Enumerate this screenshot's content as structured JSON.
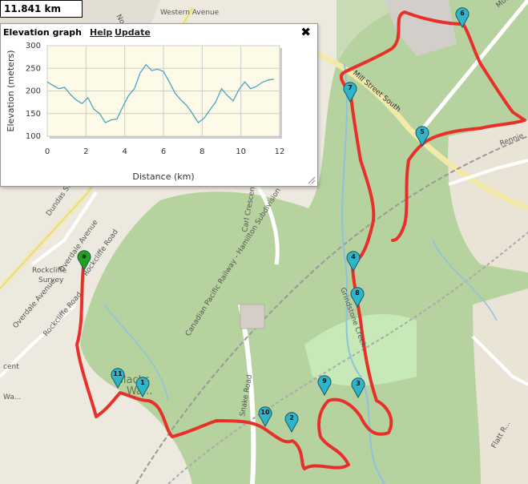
{
  "distance_readout": "11.841 km",
  "panel": {
    "title": "Elevation graph",
    "help_label": "Help",
    "update_label": "Update",
    "close_label": "✖"
  },
  "colors": {
    "route": "#e8302a",
    "marker_fill": "#2fb5c9",
    "start_marker": "#1fa31f",
    "profile_line": "#4aa3c4"
  },
  "map_labels": {
    "dundas": "Dundas Street",
    "overdale": "Overdale Avenue",
    "rockcliffe_road": "Rockcliffe Road",
    "rockcliffe_survey_1": "Rockcliffe",
    "rockcliffe_survey_2": "Survey",
    "rockcliffe_road2": "Rockcliffe Road",
    "overdale2": "Overdale Avenue",
    "cpr": "Canadian Pacific Railway - Hamilton Subdivision",
    "carl": "Carl Crescent",
    "snake": "Snake Road",
    "grindstone": "Grindstone Creek",
    "mill": "Mill Street South",
    "blacks_1": "Blacks",
    "blacks_2": "Wa...",
    "north": "North",
    "western": "Western Avenue",
    "mount": "Mount",
    "rennie": "Rennie",
    "flatt": "Flatt R...",
    "wa": "Wa...",
    "cent": "cent",
    "dundas_st": "Dundas St"
  },
  "markers": [
    {
      "id": "1",
      "label": "1",
      "type": "waypoint"
    },
    {
      "id": "2",
      "label": "2",
      "type": "waypoint"
    },
    {
      "id": "3",
      "label": "3",
      "type": "waypoint"
    },
    {
      "id": "4",
      "label": "4",
      "type": "waypoint"
    },
    {
      "id": "5",
      "label": "5",
      "type": "waypoint"
    },
    {
      "id": "6",
      "label": "6",
      "type": "waypoint"
    },
    {
      "id": "7",
      "label": "7",
      "type": "waypoint"
    },
    {
      "id": "8",
      "label": "8",
      "type": "waypoint"
    },
    {
      "id": "9",
      "label": "9",
      "type": "waypoint"
    },
    {
      "id": "10",
      "label": "10",
      "type": "waypoint"
    },
    {
      "id": "11",
      "label": "11",
      "type": "waypoint"
    },
    {
      "id": "start",
      "label": "",
      "type": "start"
    }
  ],
  "chart_data": {
    "type": "line",
    "title": "",
    "xlabel": "Distance (km)",
    "ylabel": "Elevation (meters)",
    "xlim": [
      0,
      12
    ],
    "ylim": [
      100,
      300
    ],
    "x_ticks": [
      "0",
      "2",
      "4",
      "6",
      "8",
      "10",
      "12"
    ],
    "y_ticks": [
      "300",
      "250",
      "200",
      "150",
      "100"
    ],
    "x": [
      0,
      0.3,
      0.6,
      0.9,
      1.2,
      1.5,
      1.8,
      2.1,
      2.4,
      2.7,
      3.0,
      3.3,
      3.6,
      3.9,
      4.2,
      4.5,
      4.8,
      5.1,
      5.4,
      5.7,
      6.0,
      6.3,
      6.6,
      6.9,
      7.2,
      7.5,
      7.8,
      8.1,
      8.4,
      8.7,
      9.0,
      9.3,
      9.6,
      9.9,
      10.2,
      10.5,
      10.8,
      11.1,
      11.4,
      11.7
    ],
    "series": [
      {
        "values": [
          220,
          212,
          205,
          208,
          192,
          180,
          172,
          185,
          160,
          150,
          130,
          136,
          138,
          165,
          190,
          205,
          240,
          258,
          245,
          248,
          243,
          220,
          195,
          180,
          168,
          150,
          130,
          140,
          158,
          176,
          205,
          190,
          178,
          203,
          220,
          205,
          210,
          219,
          224,
          226
        ]
      }
    ]
  }
}
